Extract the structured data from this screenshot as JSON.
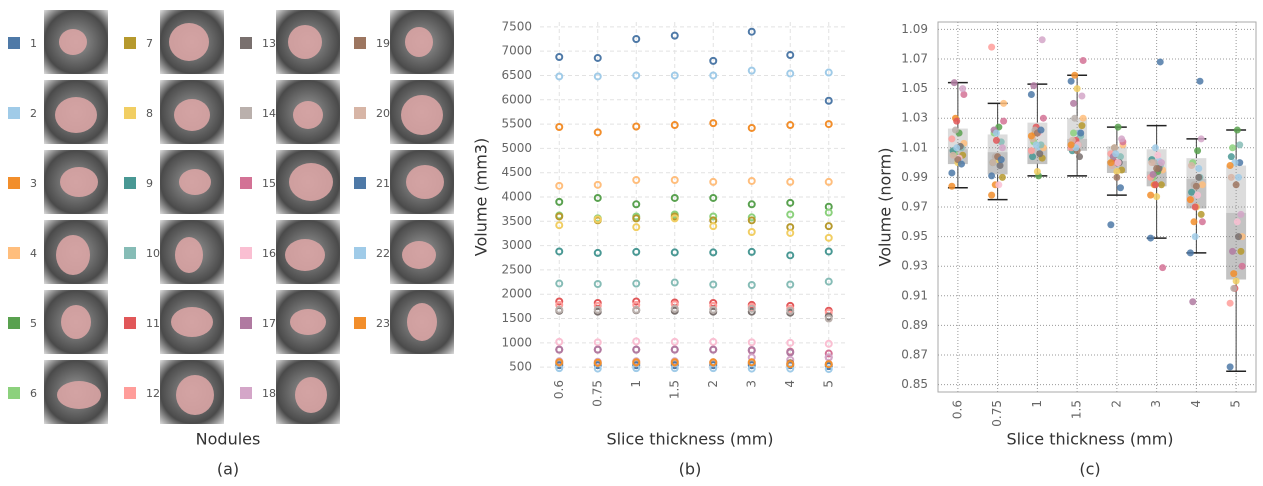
{
  "panel_a": {
    "title": "Nodules",
    "caption": "(a)",
    "nodules": [
      {
        "label": "1",
        "color": "#4e79a7"
      },
      {
        "label": "2",
        "color": "#a0cbe8"
      },
      {
        "label": "3",
        "color": "#f28e2b"
      },
      {
        "label": "4",
        "color": "#ffbe7d"
      },
      {
        "label": "5",
        "color": "#59a14f"
      },
      {
        "label": "6",
        "color": "#8cd17d"
      },
      {
        "label": "7",
        "color": "#b6992d"
      },
      {
        "label": "8",
        "color": "#f1ce63"
      },
      {
        "label": "9",
        "color": "#499894"
      },
      {
        "label": "10",
        "color": "#86bcb6"
      },
      {
        "label": "11",
        "color": "#e15759"
      },
      {
        "label": "12",
        "color": "#ff9d9a"
      },
      {
        "label": "13",
        "color": "#79706e"
      },
      {
        "label": "14",
        "color": "#bab0ac"
      },
      {
        "label": "15",
        "color": "#d37295"
      },
      {
        "label": "16",
        "color": "#fabfd2"
      },
      {
        "label": "17",
        "color": "#b07aa1"
      },
      {
        "label": "18",
        "color": "#d4a6c8"
      },
      {
        "label": "19",
        "color": "#9d7660"
      },
      {
        "label": "20",
        "color": "#d7b5a6"
      },
      {
        "label": "21",
        "color": "#4e79a7"
      },
      {
        "label": "22",
        "color": "#a0cbe8"
      },
      {
        "label": "23",
        "color": "#f28e2b"
      }
    ]
  },
  "chart_data": [
    {
      "type": "scatter",
      "caption": "(b)",
      "x_label": "Slice thickness (mm)",
      "y_label": "Volume (mm3)",
      "categories": [
        "0.6",
        "0.75",
        "1",
        "1.5",
        "2",
        "3",
        "4",
        "5"
      ],
      "ylim": [
        400,
        7600
      ],
      "yticks": [
        500,
        1000,
        1500,
        2000,
        2500,
        3000,
        3500,
        4000,
        4500,
        5000,
        5500,
        6000,
        6500,
        7000,
        7500
      ],
      "grid": true,
      "series": [
        {
          "name": "1",
          "color": "#4e79a7",
          "values": [
            6880,
            6860,
            7250,
            7320,
            6800,
            7400,
            6920,
            5980
          ]
        },
        {
          "name": "2",
          "color": "#a0cbe8",
          "values": [
            6480,
            6480,
            6500,
            6500,
            6500,
            6600,
            6540,
            6560
          ]
        },
        {
          "name": "3",
          "color": "#f28e2b",
          "values": [
            5440,
            5330,
            5450,
            5480,
            5520,
            5420,
            5480,
            5500
          ]
        },
        {
          "name": "4",
          "color": "#ffbe7d",
          "values": [
            4230,
            4250,
            4350,
            4350,
            4310,
            4330,
            4310,
            4310
          ]
        },
        {
          "name": "5",
          "color": "#59a14f",
          "values": [
            3900,
            3980,
            3850,
            3980,
            3980,
            3850,
            3880,
            3800
          ]
        },
        {
          "name": "6",
          "color": "#8cd17d",
          "values": [
            3620,
            3560,
            3600,
            3640,
            3600,
            3580,
            3640,
            3680
          ]
        },
        {
          "name": "7",
          "color": "#b6992d",
          "values": [
            3600,
            3520,
            3560,
            3600,
            3520,
            3520,
            3380,
            3400
          ]
        },
        {
          "name": "8",
          "color": "#f1ce63",
          "values": [
            3420,
            3540,
            3380,
            3560,
            3400,
            3280,
            3260,
            3160
          ]
        },
        {
          "name": "9",
          "color": "#499894",
          "values": [
            2880,
            2850,
            2870,
            2860,
            2860,
            2870,
            2800,
            2880
          ]
        },
        {
          "name": "10",
          "color": "#86bcb6",
          "values": [
            2220,
            2210,
            2220,
            2240,
            2200,
            2190,
            2200,
            2260
          ]
        },
        {
          "name": "11",
          "color": "#e15759",
          "values": [
            1850,
            1820,
            1850,
            1830,
            1820,
            1780,
            1760,
            1660
          ]
        },
        {
          "name": "12",
          "color": "#ff9d9a",
          "values": [
            1780,
            1760,
            1780,
            1790,
            1760,
            1740,
            1700,
            1620
          ]
        },
        {
          "name": "13",
          "color": "#79706e",
          "values": [
            1660,
            1640,
            1670,
            1660,
            1640,
            1640,
            1620,
            1540
          ]
        },
        {
          "name": "14",
          "color": "#bab0ac",
          "values": [
            1680,
            1680,
            1680,
            1700,
            1680,
            1700,
            1660,
            1500
          ]
        },
        {
          "name": "15",
          "color": "#d37295",
          "values": [
            860,
            860,
            860,
            860,
            860,
            840,
            820,
            780
          ]
        },
        {
          "name": "16",
          "color": "#fabfd2",
          "values": [
            1020,
            1010,
            1030,
            1020,
            1020,
            1010,
            1000,
            980
          ]
        },
        {
          "name": "17",
          "color": "#b07aa1",
          "values": [
            860,
            860,
            860,
            860,
            860,
            850,
            800,
            700
          ]
        },
        {
          "name": "18",
          "color": "#d4a6c8",
          "values": [
            620,
            610,
            620,
            620,
            600,
            700,
            650,
            700
          ]
        },
        {
          "name": "19",
          "color": "#9d7660",
          "values": [
            580,
            580,
            580,
            580,
            580,
            580,
            580,
            560
          ]
        },
        {
          "name": "20",
          "color": "#d7b5a6",
          "values": [
            560,
            560,
            560,
            560,
            560,
            560,
            560,
            540
          ]
        },
        {
          "name": "21",
          "color": "#4e79a7",
          "values": [
            540,
            540,
            540,
            540,
            540,
            540,
            540,
            520
          ]
        },
        {
          "name": "22",
          "color": "#a0cbe8",
          "values": [
            480,
            470,
            480,
            480,
            480,
            470,
            470,
            460
          ]
        },
        {
          "name": "23",
          "color": "#f28e2b",
          "values": [
            600,
            590,
            600,
            600,
            600,
            600,
            560,
            560
          ]
        }
      ]
    },
    {
      "type": "box",
      "caption": "(c)",
      "x_label": "Slice thickness (mm)",
      "y_label": "Volume (norm)",
      "categories": [
        "0.6",
        "0.75",
        "1",
        "1.5",
        "2",
        "3",
        "4",
        "5"
      ],
      "ylim": [
        0.845,
        1.095
      ],
      "yticks": [
        0.85,
        0.87,
        0.89,
        0.91,
        0.93,
        0.95,
        0.97,
        0.99,
        1.01,
        1.03,
        1.05,
        1.07,
        1.09
      ],
      "grid": true,
      "boxes": [
        {
          "low": 0.983,
          "q1": 0.999,
          "median": 1.009,
          "q3": 1.023,
          "high": 1.054
        },
        {
          "low": 0.975,
          "q1": 0.992,
          "median": 1.007,
          "q3": 1.019,
          "high": 1.04
        },
        {
          "low": 0.991,
          "q1": 0.999,
          "median": 1.01,
          "q3": 1.027,
          "high": 1.053
        },
        {
          "low": 0.991,
          "q1": 1.008,
          "median": 1.016,
          "q3": 1.03,
          "high": 1.059
        },
        {
          "low": 0.978,
          "q1": 0.993,
          "median": 1.001,
          "q3": 1.011,
          "high": 1.024
        },
        {
          "low": 0.949,
          "q1": 0.984,
          "median": 0.994,
          "q3": 1.009,
          "high": 1.025
        },
        {
          "low": 0.939,
          "q1": 0.969,
          "median": 0.989,
          "q3": 1.003,
          "high": 1.016
        },
        {
          "low": 0.859,
          "q1": 0.921,
          "median": 0.966,
          "q3": 0.998,
          "high": 1.022
        }
      ],
      "series": [
        {
          "name": "1",
          "color": "#4e79a7",
          "values": [
            0.993,
            0.991,
            1.046,
            1.055,
            0.958,
            0.949,
            0.939,
            0.862
          ]
        },
        {
          "name": "2",
          "color": "#a0cbe8",
          "values": [
            1.003,
            0.998,
            1.01,
            1.02,
            1.0,
            1.001,
            0.996,
            0.99
          ]
        },
        {
          "name": "3",
          "color": "#f28e2b",
          "values": [
            1.03,
            0.985,
            1.02,
            1.059,
            1.01,
            0.985,
            0.96,
            0.925
          ]
        },
        {
          "name": "4",
          "color": "#ffbe7d",
          "values": [
            1.013,
            1.04,
            1.01,
            1.03,
            1.012,
            0.995,
            0.985,
            0.95
          ]
        },
        {
          "name": "5",
          "color": "#59a14f",
          "values": [
            1.02,
            1.024,
            0.991,
            1.012,
            1.024,
            0.994,
            1.008,
            1.022
          ]
        },
        {
          "name": "6",
          "color": "#8cd17d",
          "values": [
            1.006,
            1.02,
            1.014,
            1.02,
            1.004,
            0.99,
            1.0,
            1.01
          ]
        },
        {
          "name": "7",
          "color": "#b6992d",
          "values": [
            1.005,
            0.99,
            1.003,
            1.025,
            0.995,
            0.985,
            0.965,
            0.94
          ]
        },
        {
          "name": "8",
          "color": "#f1ce63",
          "values": [
            1.0,
            1.002,
            0.994,
            1.05,
            0.994,
            0.977,
            0.97,
            0.92
          ]
        },
        {
          "name": "9",
          "color": "#499894",
          "values": [
            1.008,
            1.0,
            1.004,
            1.008,
            1.0,
            1.002,
            0.98,
            1.004
          ]
        },
        {
          "name": "10",
          "color": "#86bcb6",
          "values": [
            1.01,
            1.014,
            1.012,
            1.018,
            1.004,
            0.998,
            0.99,
            1.012
          ]
        },
        {
          "name": "11",
          "color": "#e15759",
          "values": [
            1.028,
            1.015,
            1.024,
            1.015,
            1.0,
            0.985,
            0.97,
            0.915
          ]
        },
        {
          "name": "12",
          "color": "#ff9d9a",
          "values": [
            1.016,
            1.078,
            1.008,
            1.01,
            1.006,
            0.99,
            0.975,
            0.905
          ]
        },
        {
          "name": "13",
          "color": "#79706e",
          "values": [
            1.011,
            0.998,
            1.006,
            1.004,
            1.0,
            0.996,
            0.99,
            0.95
          ]
        },
        {
          "name": "14",
          "color": "#bab0ac",
          "values": [
            1.022,
            1.004,
            1.022,
            1.03,
            1.01,
            1.0,
            0.985,
            0.915
          ]
        },
        {
          "name": "15",
          "color": "#d37295",
          "values": [
            1.046,
            1.028,
            1.03,
            1.069,
            1.014,
            0.929,
            0.96,
            0.93
          ]
        },
        {
          "name": "16",
          "color": "#fabfd2",
          "values": [
            1.003,
            0.985,
            1.02,
            1.012,
            1.0,
            1.005,
            0.978,
            0.96
          ]
        },
        {
          "name": "17",
          "color": "#b07aa1",
          "values": [
            1.054,
            1.022,
            1.052,
            1.04,
            1.004,
            0.992,
            0.906,
            0.94
          ]
        },
        {
          "name": "18",
          "color": "#d4a6c8",
          "values": [
            1.05,
            1.01,
            1.083,
            1.045,
            1.016,
            1.0,
            1.016,
            0.965
          ]
        },
        {
          "name": "19",
          "color": "#9d7660",
          "values": [
            1.002,
            1.004,
            1.02,
            1.008,
            0.99,
            0.996,
            0.984,
            0.985
          ]
        },
        {
          "name": "20",
          "color": "#d7b5a6",
          "values": [
            1.005,
            1.0,
            1.016,
            1.015,
            0.998,
            1.0,
            0.998,
            0.99
          ]
        },
        {
          "name": "21",
          "color": "#4e79a7",
          "values": [
            0.999,
            1.002,
            1.022,
            1.02,
            0.983,
            1.068,
            1.055,
            1.0
          ]
        },
        {
          "name": "22",
          "color": "#a0cbe8",
          "values": [
            1.01,
            1.02,
            1.012,
            1.01,
            1.006,
            1.01,
            0.95,
            1.0
          ]
        },
        {
          "name": "23",
          "color": "#f28e2b",
          "values": [
            0.984,
            0.978,
            1.018,
            1.012,
            1.0,
            0.978,
            0.975,
            0.998
          ]
        }
      ]
    }
  ]
}
